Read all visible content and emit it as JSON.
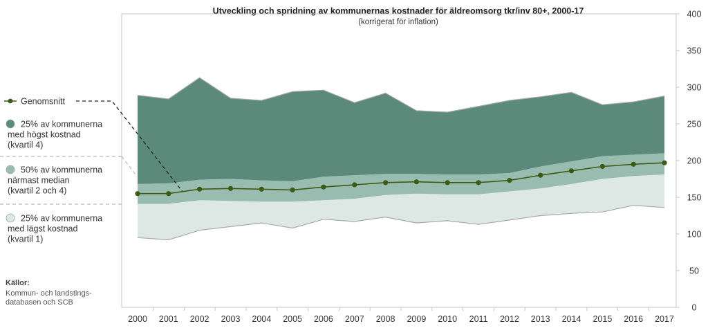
{
  "chart_data": {
    "type": "area",
    "title": "Utveckling och spridning av kommunernas kostnader för äldreomsorg tkr/inv 80+, 2000-17",
    "subtitle": "(korrigerat för inflation)",
    "x": [
      "2000",
      "2001",
      "2002",
      "2003",
      "2004",
      "2005",
      "2006",
      "2007",
      "2008",
      "2009",
      "2010",
      "2011",
      "2012",
      "2013",
      "2014",
      "2015",
      "2016",
      "2017"
    ],
    "ylim": [
      0,
      400
    ],
    "yticks": [
      "0",
      "50",
      "100",
      "150",
      "200",
      "250",
      "300",
      "350",
      "400"
    ],
    "y_axis_position": "right",
    "grid": false,
    "bands": {
      "min": [
        95,
        92,
        105,
        110,
        115,
        108,
        120,
        117,
        123,
        115,
        118,
        113,
        119,
        125,
        128,
        130,
        139,
        136
      ],
      "q1": [
        141,
        141,
        146,
        145,
        144,
        144,
        146,
        148,
        153,
        155,
        154,
        154,
        158,
        162,
        168,
        175,
        179,
        181
      ],
      "q3": [
        168,
        169,
        174,
        175,
        173,
        172,
        178,
        180,
        182,
        182,
        181,
        181,
        183,
        192,
        199,
        206,
        208,
        210
      ],
      "max": [
        289,
        284,
        313,
        285,
        282,
        294,
        296,
        279,
        292,
        268,
        266,
        274,
        282,
        287,
        293,
        276,
        280,
        288
      ]
    },
    "series": [
      {
        "name": "Genomsnitt",
        "values": [
          155,
          155,
          161,
          162,
          161,
          160,
          164,
          167,
          170,
          171,
          170,
          170,
          173,
          180,
          186,
          192,
          195,
          197
        ]
      }
    ],
    "legend": {
      "placement": "left",
      "items": [
        {
          "key": "mean",
          "lines": [
            "Genomsnitt"
          ]
        },
        {
          "key": "q4",
          "lines": [
            "25% av kommunerna",
            "med högst kostnad",
            "(kvartil 4)"
          ]
        },
        {
          "key": "mid",
          "lines": [
            "50% av kommunerna",
            "närmast median",
            "(kvartil 2 och 4)"
          ]
        },
        {
          "key": "q1",
          "lines": [
            "25% av kommunerna",
            "med lägst kostnad",
            "(kvartil 1)"
          ]
        }
      ]
    },
    "source": {
      "heading": "Källor:",
      "lines": [
        "Kommun- och landstings-",
        "databasen och SCB"
      ]
    },
    "colors": {
      "top_band": "#5b8a7a",
      "mid_band": "#98bdb0",
      "low_band": "#dde8e4",
      "band_edge": "#a8a8a8",
      "mean_line": "#3c5a12",
      "plot_border": "#c4c4c4",
      "text": "#333333"
    }
  }
}
